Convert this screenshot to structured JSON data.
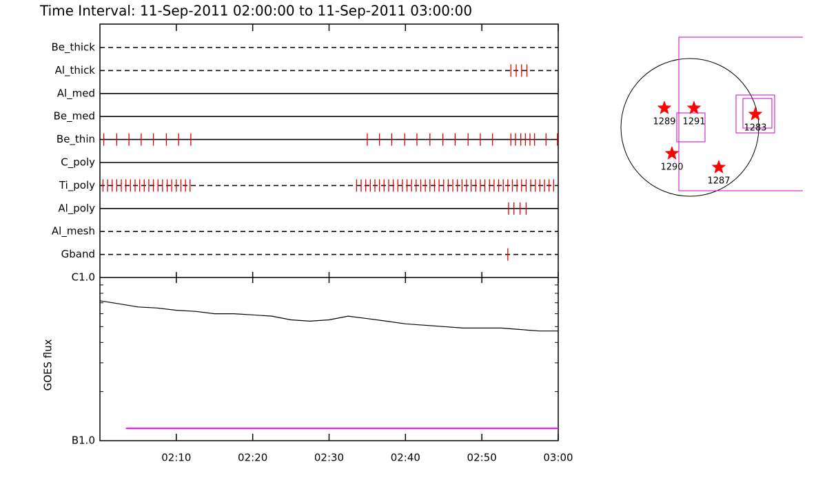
{
  "chart_data": [
    {
      "type": "events",
      "title": "Time Interval: 11-Sep-2011 02:00:00 to 11-Sep-2011 03:00:00",
      "xlim": [
        0,
        60
      ],
      "color": "#dd0000",
      "rows": [
        {
          "name": "Be_thick",
          "style": "dashed",
          "times": []
        },
        {
          "name": "Al_thick",
          "style": "dashed",
          "times": [
            53.8,
            54.5,
            55.2,
            55.9
          ]
        },
        {
          "name": "Al_med",
          "style": "solid",
          "times": []
        },
        {
          "name": "Be_med",
          "style": "solid",
          "times": []
        },
        {
          "name": "Be_thin",
          "style": "solid",
          "times": [
            0.5,
            2.2,
            3.8,
            5.4,
            7.0,
            8.7,
            10.3,
            11.9,
            35.0,
            36.6,
            38.2,
            39.9,
            41.5,
            43.2,
            44.9,
            46.5,
            48.2,
            49.8,
            51.4,
            53.8,
            54.4,
            55.1,
            55.7,
            56.3,
            56.9,
            58.4,
            59.9
          ]
        },
        {
          "name": "C_poly",
          "style": "solid",
          "times": []
        },
        {
          "name": "Ti_poly",
          "style": "dashed",
          "times": [
            0.4,
            1.0,
            1.6,
            2.2,
            2.8,
            3.4,
            4.0,
            4.6,
            5.2,
            5.8,
            6.4,
            7.0,
            7.6,
            8.2,
            8.8,
            9.4,
            10.0,
            10.6,
            11.2,
            11.8,
            33.6,
            34.2,
            34.8,
            35.4,
            36.0,
            36.6,
            37.2,
            37.8,
            38.4,
            39.0,
            39.6,
            40.2,
            40.8,
            41.4,
            42.0,
            42.6,
            43.2,
            43.8,
            44.4,
            45.0,
            45.6,
            46.2,
            46.8,
            47.4,
            48.0,
            48.6,
            49.2,
            49.8,
            50.4,
            51.0,
            51.6,
            52.2,
            52.8,
            53.4,
            54.0,
            54.6,
            55.2,
            55.8,
            56.4,
            57.0,
            57.6,
            58.2,
            58.8,
            59.4
          ]
        },
        {
          "name": "Al_poly",
          "style": "solid",
          "times": [
            53.5,
            54.2,
            55.0,
            55.8
          ]
        },
        {
          "name": "Al_mesh",
          "style": "dashed",
          "times": []
        },
        {
          "name": "Gband",
          "style": "dashed",
          "times": [
            53.4
          ]
        }
      ]
    },
    {
      "type": "line",
      "ylabel": "GOES flux",
      "log_y": true,
      "ylim": [
        1e-07,
        1e-06
      ],
      "yticks": [
        {
          "value": 1e-06,
          "label": "C1.0"
        },
        {
          "value": 1e-07,
          "label": "B1.0"
        }
      ],
      "minor_yticks": [
        2e-07,
        3e-07,
        4e-07,
        5e-07,
        6e-07,
        7e-07,
        8e-07,
        9e-07
      ],
      "xlim": [
        0,
        60
      ],
      "xticks": [
        {
          "value": 10,
          "label": "02:10"
        },
        {
          "value": 20,
          "label": "02:20"
        },
        {
          "value": 30,
          "label": "02:30"
        },
        {
          "value": 40,
          "label": "02:40"
        },
        {
          "value": 50,
          "label": "02:50"
        },
        {
          "value": 60,
          "label": "03:00"
        }
      ],
      "series": [
        {
          "color": "#000000",
          "x": [
            0,
            2.5,
            5,
            7.5,
            10,
            12.5,
            15,
            17.5,
            20,
            22.5,
            25,
            27.5,
            30,
            32.5,
            35,
            37.5,
            40,
            42.5,
            45,
            47.5,
            50,
            52.5,
            55,
            57.5,
            60
          ],
          "values": [
            7.2e-07,
            6.9e-07,
            6.6e-07,
            6.5e-07,
            6.3e-07,
            6.2e-07,
            6e-07,
            6e-07,
            5.9e-07,
            5.8e-07,
            5.5e-07,
            5.4e-07,
            5.5e-07,
            5.8e-07,
            5.6e-07,
            5.4e-07,
            5.2e-07,
            5.1e-07,
            5e-07,
            4.9e-07,
            4.9e-07,
            4.9e-07,
            4.8e-07,
            4.7e-07,
            4.7e-07
          ]
        },
        {
          "color": "#ff00ff",
          "x": [
            3.4,
            60
          ],
          "values": [
            1.19e-07,
            1.19e-07
          ]
        }
      ]
    }
  ],
  "map": {
    "labels": [
      "1289",
      "1291",
      "1283",
      "1290",
      "1287"
    ]
  }
}
